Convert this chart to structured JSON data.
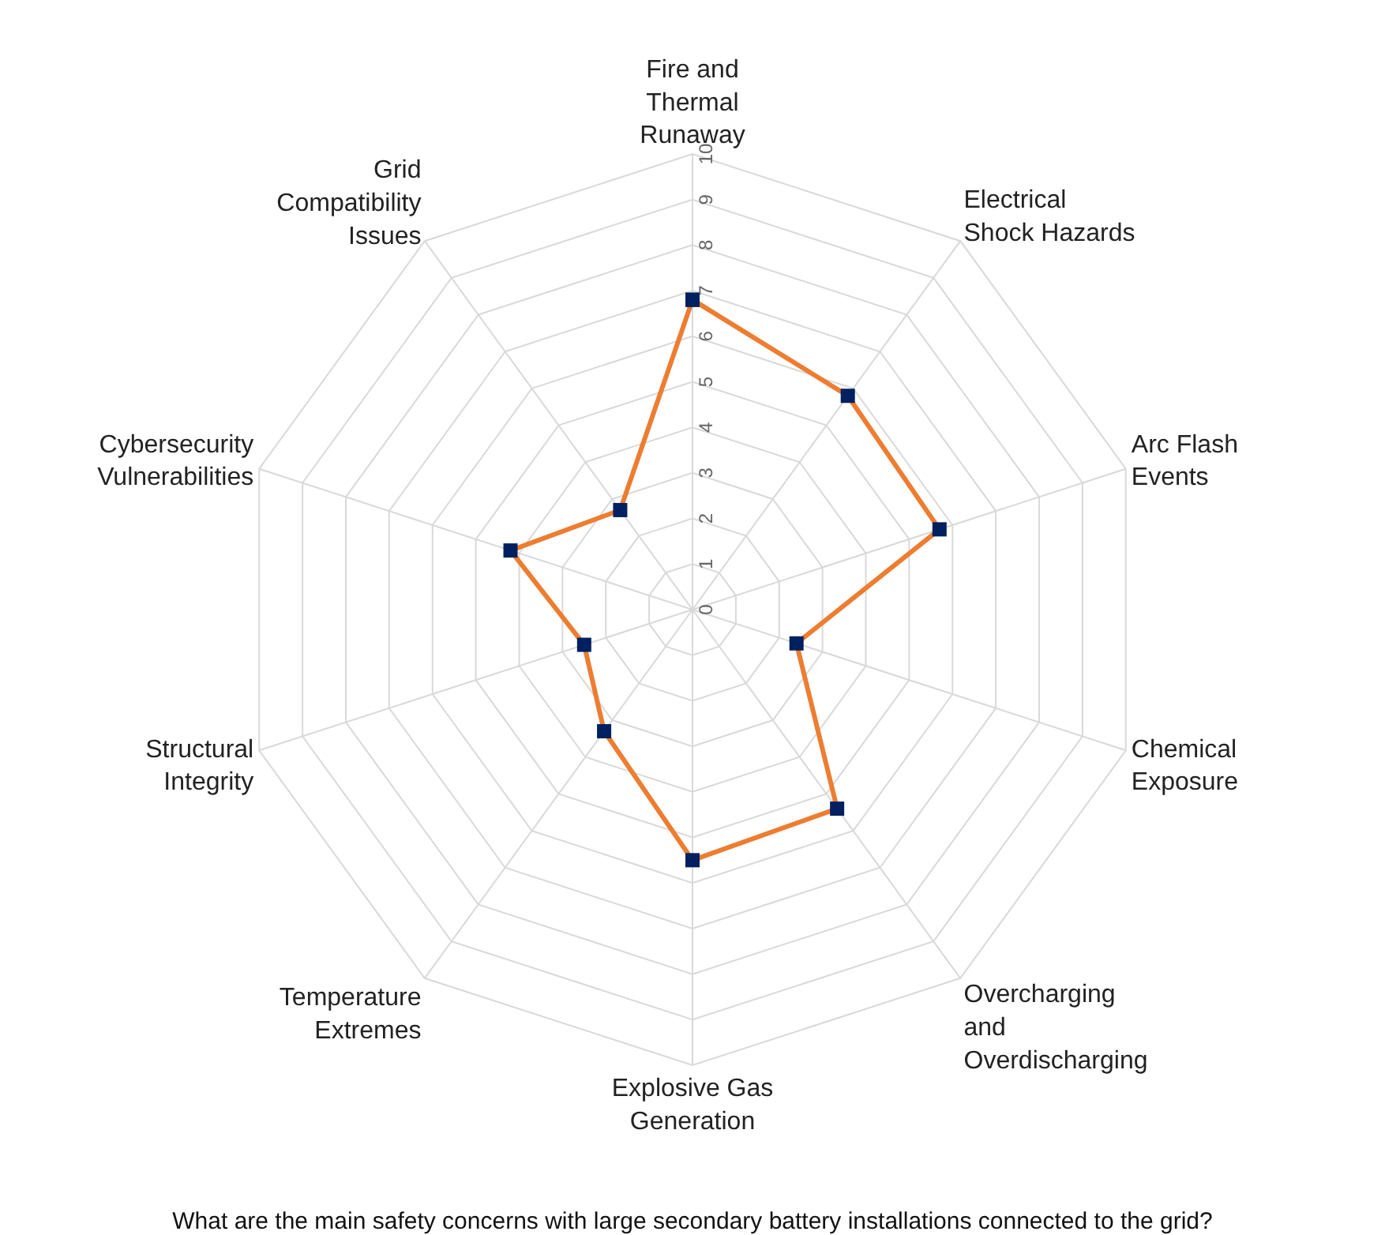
{
  "chart_data": {
    "type": "radar",
    "title": "What are the main safety concerns with large secondary battery installations connected to the grid?",
    "categories": [
      "Fire and Thermal Runaway",
      "Electrical Shock Hazards",
      "Arc Flash Events",
      "Chemical Exposure",
      "Overcharging and Overdischarging",
      "Explosive Gas Generation",
      "Temperature Extremes",
      "Structural Integrity",
      "Cybersecurity Vulnerabilities",
      "Grid Compatibility Issues"
    ],
    "series": [
      {
        "color": "#ed7d31",
        "colors": [
          "#002060",
          "#002060",
          "#002060",
          "#002060",
          "#002060",
          "#002060",
          "#002060",
          "#002060",
          "#002060",
          "#002060"
        ],
        "values": [
          6.8,
          5.8,
          5.7,
          2.4,
          5.4,
          5.5,
          3.3,
          2.5,
          4.2,
          2.7
        ]
      }
    ],
    "ylim": [
      0,
      10
    ],
    "yticks": [
      0,
      1,
      2,
      3,
      4,
      5,
      6,
      7,
      8,
      9,
      10
    ],
    "grid": true,
    "marker": "square",
    "line_style": "solid"
  }
}
